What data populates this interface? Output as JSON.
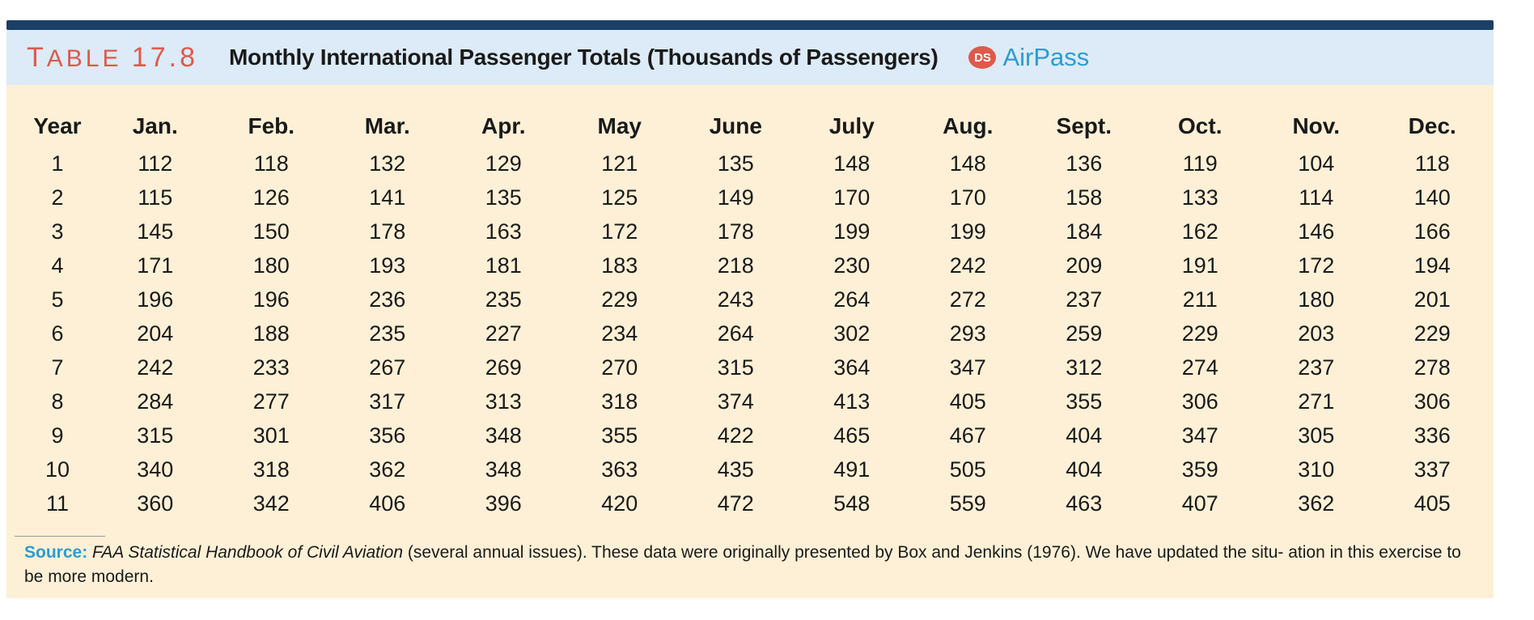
{
  "table": {
    "label_prefix": "T",
    "label_word": "ABLE",
    "label_number": "17.8",
    "title": "Monthly International Passenger Totals (Thousands of Passengers)",
    "ds_badge": "DS",
    "dataset_name": "AirPass",
    "columns": [
      "Year",
      "Jan.",
      "Feb.",
      "Mar.",
      "Apr.",
      "May",
      "June",
      "July",
      "Aug.",
      "Sept.",
      "Oct.",
      "Nov.",
      "Dec."
    ],
    "rows": [
      [
        "1",
        "112",
        "118",
        "132",
        "129",
        "121",
        "135",
        "148",
        "148",
        "136",
        "119",
        "104",
        "118"
      ],
      [
        "2",
        "115",
        "126",
        "141",
        "135",
        "125",
        "149",
        "170",
        "170",
        "158",
        "133",
        "114",
        "140"
      ],
      [
        "3",
        "145",
        "150",
        "178",
        "163",
        "172",
        "178",
        "199",
        "199",
        "184",
        "162",
        "146",
        "166"
      ],
      [
        "4",
        "171",
        "180",
        "193",
        "181",
        "183",
        "218",
        "230",
        "242",
        "209",
        "191",
        "172",
        "194"
      ],
      [
        "5",
        "196",
        "196",
        "236",
        "235",
        "229",
        "243",
        "264",
        "272",
        "237",
        "211",
        "180",
        "201"
      ],
      [
        "6",
        "204",
        "188",
        "235",
        "227",
        "234",
        "264",
        "302",
        "293",
        "259",
        "229",
        "203",
        "229"
      ],
      [
        "7",
        "242",
        "233",
        "267",
        "269",
        "270",
        "315",
        "364",
        "347",
        "312",
        "274",
        "237",
        "278"
      ],
      [
        "8",
        "284",
        "277",
        "317",
        "313",
        "318",
        "374",
        "413",
        "405",
        "355",
        "306",
        "271",
        "306"
      ],
      [
        "9",
        "315",
        "301",
        "356",
        "348",
        "355",
        "422",
        "465",
        "467",
        "404",
        "347",
        "305",
        "336"
      ],
      [
        "10",
        "340",
        "318",
        "362",
        "348",
        "363",
        "435",
        "491",
        "505",
        "404",
        "359",
        "310",
        "337"
      ],
      [
        "11",
        "360",
        "342",
        "406",
        "396",
        "420",
        "472",
        "548",
        "559",
        "463",
        "407",
        "362",
        "405"
      ]
    ]
  },
  "source": {
    "label": "Source:",
    "italic_text": "FAA Statistical Handbook of Civil Aviation",
    "rest_text": "(several annual issues). These data were originally presented by Box and Jenkins (1976). We have updated the situ- ation in this exercise to be more modern."
  },
  "colors": {
    "header_bar": "#1c3f66",
    "title_band": "#dcebf7",
    "panel": "#fdf0d6",
    "label_red": "#e0594a",
    "accent_blue": "#2c9bd3"
  }
}
